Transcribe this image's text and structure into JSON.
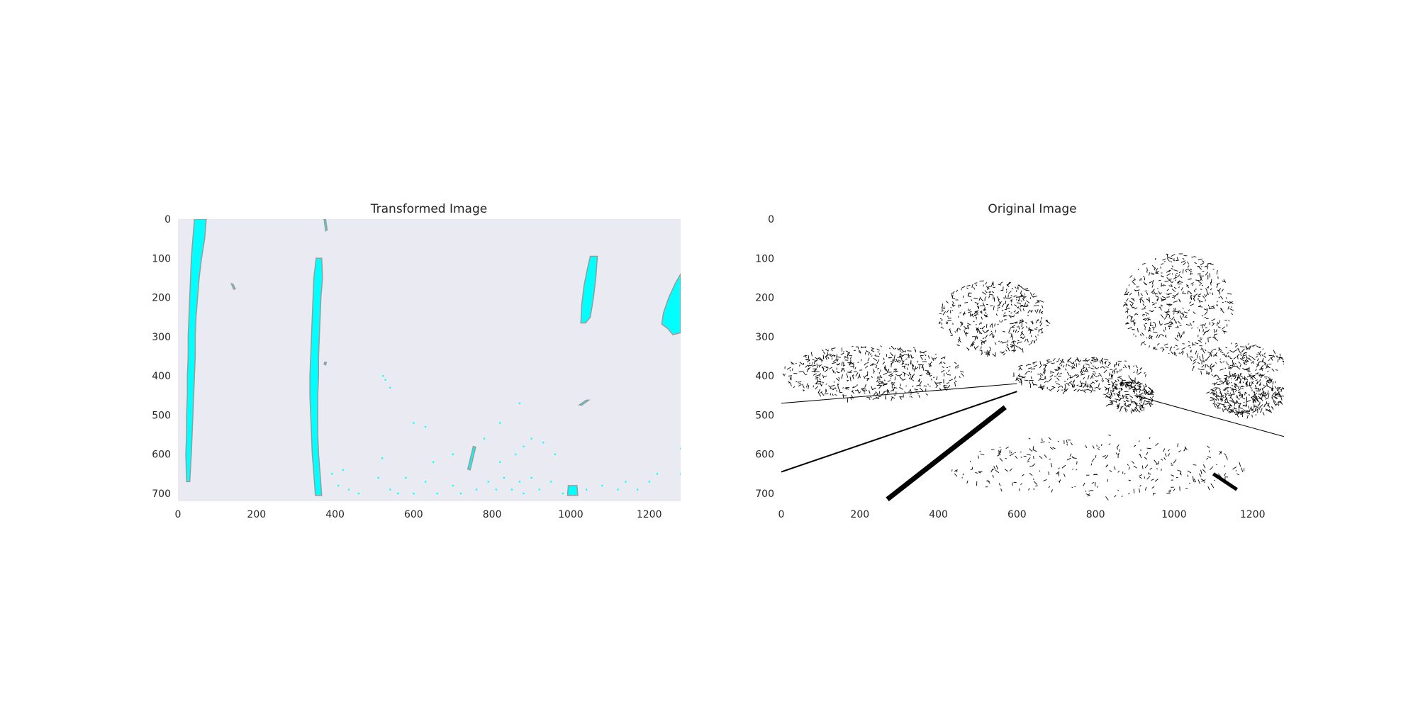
{
  "chart_data": [
    {
      "type": "image",
      "title": "Transformed Image",
      "xlabel": "",
      "ylabel": "",
      "xlim": [
        0,
        1280
      ],
      "ylim": [
        720,
        0
      ],
      "x_ticks": [
        0,
        200,
        400,
        600,
        800,
        1000,
        1200
      ],
      "y_ticks": [
        0,
        100,
        200,
        300,
        400,
        500,
        600,
        700
      ],
      "x_tick_labels": [
        "0",
        "200",
        "400",
        "600",
        "800",
        "1000",
        "1200"
      ],
      "y_tick_labels": [
        "0",
        "100",
        "200",
        "300",
        "400",
        "500",
        "600",
        "700"
      ],
      "grid": false,
      "background_color": "#eaeaf2",
      "mark_color": "#00ffff",
      "mark_outline_color": "#9a9a9a",
      "regions": [
        {
          "name": "left-lane-line",
          "points": [
            [
              42,
              0
            ],
            [
              72,
              0
            ],
            [
              68,
              50
            ],
            [
              60,
              100
            ],
            [
              54,
              150
            ],
            [
              50,
              200
            ],
            [
              46,
              250
            ],
            [
              44,
              300
            ],
            [
              44,
              350
            ],
            [
              42,
              400
            ],
            [
              40,
              450
            ],
            [
              38,
              500
            ],
            [
              36,
              550
            ],
            [
              34,
              600
            ],
            [
              30,
              670
            ],
            [
              22,
              670
            ],
            [
              20,
              600
            ],
            [
              22,
              550
            ],
            [
              22,
              500
            ],
            [
              24,
              450
            ],
            [
              24,
              400
            ],
            [
              26,
              350
            ],
            [
              26,
              300
            ],
            [
              28,
              250
            ],
            [
              30,
              200
            ],
            [
              32,
              150
            ],
            [
              34,
              100
            ],
            [
              38,
              50
            ]
          ]
        },
        {
          "name": "center-lane-line",
          "points": [
            [
              352,
              100
            ],
            [
              366,
              100
            ],
            [
              368,
              150
            ],
            [
              364,
              200
            ],
            [
              362,
              250
            ],
            [
              360,
              300
            ],
            [
              358,
              350
            ],
            [
              358,
              400
            ],
            [
              356,
              450
            ],
            [
              356,
              500
            ],
            [
              356,
              550
            ],
            [
              358,
              600
            ],
            [
              362,
              650
            ],
            [
              366,
              705
            ],
            [
              350,
              705
            ],
            [
              346,
              650
            ],
            [
              342,
              600
            ],
            [
              340,
              550
            ],
            [
              338,
              500
            ],
            [
              336,
              450
            ],
            [
              336,
              400
            ],
            [
              338,
              350
            ],
            [
              340,
              300
            ],
            [
              342,
              250
            ],
            [
              344,
              200
            ],
            [
              346,
              150
            ]
          ]
        },
        {
          "name": "upper-right-blob",
          "points": [
            [
              1050,
              95
            ],
            [
              1068,
              95
            ],
            [
              1064,
              150
            ],
            [
              1058,
              200
            ],
            [
              1050,
              250
            ],
            [
              1038,
              265
            ],
            [
              1026,
              265
            ],
            [
              1028,
              220
            ],
            [
              1034,
              170
            ],
            [
              1042,
              130
            ]
          ]
        },
        {
          "name": "far-right-blob",
          "points": [
            [
              1280,
              140
            ],
            [
              1280,
              290
            ],
            [
              1260,
              295
            ],
            [
              1248,
              280
            ],
            [
              1232,
              268
            ],
            [
              1236,
              240
            ],
            [
              1250,
              200
            ],
            [
              1266,
              165
            ]
          ]
        },
        {
          "name": "bottom-spot",
          "points": [
            [
              994,
              680
            ],
            [
              1016,
              680
            ],
            [
              1018,
              705
            ],
            [
              992,
              705
            ]
          ]
        },
        {
          "name": "diagonal-dash",
          "points": [
            [
              752,
              580
            ],
            [
              758,
              582
            ],
            [
              744,
              640
            ],
            [
              738,
              638
            ]
          ]
        },
        {
          "name": "small-dash-1",
          "points": [
            [
              1040,
              462
            ],
            [
              1046,
              462
            ],
            [
              1028,
              475
            ],
            [
              1022,
              474
            ]
          ]
        },
        {
          "name": "small-dash-2",
          "points": [
            [
              374,
              365
            ],
            [
              378,
              366
            ],
            [
              376,
              372
            ],
            [
              372,
              370
            ]
          ]
        },
        {
          "name": "small-dash-3",
          "points": [
            [
              136,
              165
            ],
            [
              140,
              166
            ],
            [
              146,
              178
            ],
            [
              142,
              179
            ]
          ]
        },
        {
          "name": "small-dash-4",
          "points": [
            [
              372,
              0
            ],
            [
              376,
              0
            ],
            [
              380,
              28
            ],
            [
              376,
              30
            ]
          ]
        }
      ],
      "specks": [
        [
          392,
          650
        ],
        [
          408,
          680
        ],
        [
          420,
          640
        ],
        [
          435,
          690
        ],
        [
          460,
          700
        ],
        [
          520,
          610
        ],
        [
          510,
          660
        ],
        [
          540,
          690
        ],
        [
          560,
          700
        ],
        [
          580,
          660
        ],
        [
          600,
          700
        ],
        [
          630,
          670
        ],
        [
          660,
          700
        ],
        [
          700,
          680
        ],
        [
          720,
          700
        ],
        [
          760,
          690
        ],
        [
          790,
          670
        ],
        [
          810,
          690
        ],
        [
          830,
          660
        ],
        [
          850,
          690
        ],
        [
          870,
          670
        ],
        [
          880,
          700
        ],
        [
          900,
          660
        ],
        [
          920,
          690
        ],
        [
          950,
          670
        ],
        [
          980,
          700
        ],
        [
          1040,
          690
        ],
        [
          1080,
          680
        ],
        [
          1120,
          690
        ],
        [
          1140,
          670
        ],
        [
          1170,
          690
        ],
        [
          1200,
          670
        ],
        [
          1220,
          650
        ],
        [
          860,
          600
        ],
        [
          880,
          580
        ],
        [
          900,
          560
        ],
        [
          930,
          570
        ],
        [
          960,
          600
        ],
        [
          820,
          620
        ],
        [
          780,
          560
        ],
        [
          700,
          600
        ],
        [
          650,
          620
        ],
        [
          820,
          520
        ],
        [
          870,
          470
        ],
        [
          540,
          430
        ],
        [
          522,
          400
        ],
        [
          528,
          410
        ],
        [
          1280,
          585
        ],
        [
          1280,
          650
        ],
        [
          630,
          530
        ],
        [
          600,
          520
        ]
      ]
    },
    {
      "type": "image",
      "title": "Original Image",
      "xlabel": "",
      "ylabel": "",
      "xlim": [
        0,
        1280
      ],
      "ylim": [
        720,
        0
      ],
      "x_ticks": [
        0,
        200,
        400,
        600,
        800,
        1000,
        1200
      ],
      "y_ticks": [
        0,
        100,
        200,
        300,
        400,
        500,
        600,
        700
      ],
      "x_tick_labels": [
        "0",
        "200",
        "400",
        "600",
        "800",
        "1000",
        "1200"
      ],
      "y_tick_labels": [
        "0",
        "100",
        "200",
        "300",
        "400",
        "500",
        "600",
        "700"
      ],
      "grid": false,
      "background_color": "#ffffff",
      "mark_color": "#000000",
      "edge_lines": [
        {
          "name": "left-road-edge",
          "x": [
            0,
            600
          ],
          "y": [
            645,
            440
          ],
          "width": 2
        },
        {
          "name": "left-lane-marking",
          "x": [
            270,
            570
          ],
          "y": [
            715,
            480
          ],
          "width": 7
        },
        {
          "name": "right-lane-dash",
          "x": [
            1100,
            1160
          ],
          "y": [
            650,
            690
          ],
          "width": 5
        },
        {
          "name": "guardrail-line",
          "x": [
            0,
            600
          ],
          "y": [
            470,
            420
          ],
          "width": 1
        },
        {
          "name": "right-road-edge",
          "x": [
            900,
            1280
          ],
          "y": [
            450,
            555
          ],
          "width": 1
        }
      ],
      "texture_regions": [
        {
          "name": "left-tree",
          "cx": 540,
          "cy": 250,
          "rx": 140,
          "ry": 95,
          "density": 420
        },
        {
          "name": "right-tree",
          "cx": 1010,
          "cy": 215,
          "rx": 140,
          "ry": 130,
          "density": 480
        },
        {
          "name": "left-hedge",
          "cx": 230,
          "cy": 390,
          "rx": 230,
          "ry": 70,
          "density": 520
        },
        {
          "name": "center-bushes",
          "cx": 760,
          "cy": 395,
          "rx": 170,
          "ry": 45,
          "density": 300
        },
        {
          "name": "right-hedge",
          "cx": 1160,
          "cy": 360,
          "rx": 125,
          "ry": 45,
          "density": 200
        },
        {
          "name": "left-car",
          "cx": 885,
          "cy": 450,
          "rx": 65,
          "ry": 40,
          "density": 220
        },
        {
          "name": "right-car",
          "cx": 1185,
          "cy": 445,
          "rx": 95,
          "ry": 55,
          "density": 380
        },
        {
          "name": "road-specks",
          "cx": 800,
          "cy": 630,
          "rx": 380,
          "ry": 80,
          "density": 260
        }
      ]
    }
  ]
}
